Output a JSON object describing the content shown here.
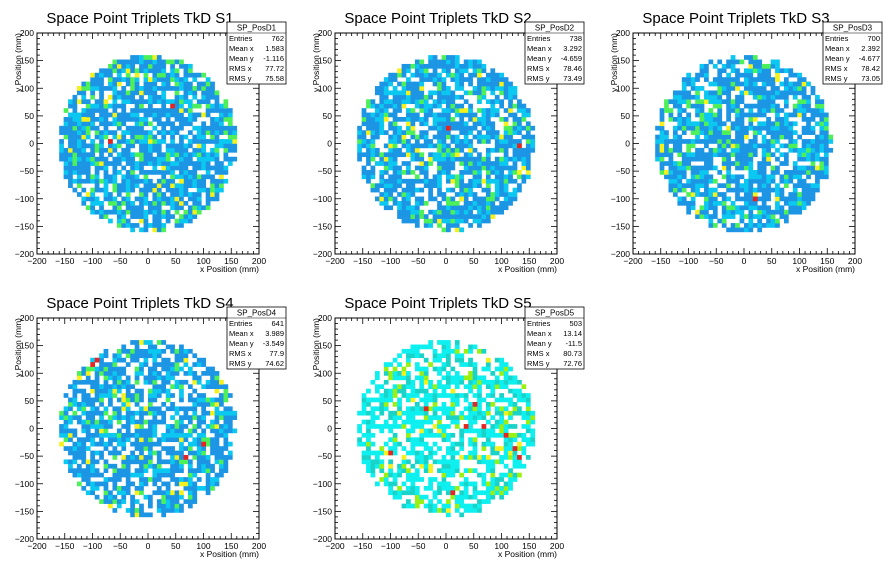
{
  "chart_data": [
    {
      "type": "heatmap",
      "title": "Space Point Triplets TkD S1",
      "xlabel": "x Position (mm)",
      "ylabel": "y Position (mm)",
      "xlim": [
        -200,
        200
      ],
      "ylim": [
        -200,
        200
      ],
      "xticks": [
        "−200",
        "−150",
        "−100",
        "−50",
        "0",
        "50",
        "100",
        "150",
        "200"
      ],
      "yticks": [
        "−200",
        "−150",
        "−100",
        "−50",
        "0",
        "50",
        "100",
        "150",
        "200"
      ],
      "stats": {
        "name": "SP_PosD1",
        "rows": [
          {
            "label": "Entries",
            "value": "762"
          },
          {
            "label": "Mean x",
            "value": "1.583"
          },
          {
            "label": "Mean y",
            "value": "-1.116"
          },
          {
            "label": "RMS x",
            "value": "77.72"
          },
          {
            "label": "RMS y",
            "value": "75.58"
          }
        ]
      },
      "occupied_radius_mm": 160,
      "cell_mm": 8,
      "grid": false,
      "palette": [
        "#1c95e4",
        "#0bc8f0",
        "#4ef05a",
        "#f5f11c",
        "#e52424"
      ],
      "fill_ratio": 0.78,
      "seed": 11,
      "hot_bins": [
        {
          "x": 40,
          "y": 64,
          "level": 5
        },
        {
          "x": -72,
          "y": 0,
          "level": 5
        },
        {
          "x": -120,
          "y": 40,
          "level": 4
        },
        {
          "x": 56,
          "y": -72,
          "level": 4
        }
      ]
    },
    {
      "type": "heatmap",
      "title": "Space Point Triplets TkD S2",
      "xlabel": "x Position (mm)",
      "ylabel": "y Position (mm)",
      "xlim": [
        -200,
        200
      ],
      "ylim": [
        -200,
        200
      ],
      "xticks": [
        "−200",
        "−150",
        "−100",
        "−50",
        "0",
        "50",
        "100",
        "150",
        "200"
      ],
      "yticks": [
        "−200",
        "−150",
        "−100",
        "−50",
        "0",
        "50",
        "100",
        "150",
        "200"
      ],
      "stats": {
        "name": "SP_PosD2",
        "rows": [
          {
            "label": "Entries",
            "value": "738"
          },
          {
            "label": "Mean x",
            "value": "3.292"
          },
          {
            "label": "Mean y",
            "value": "-4.659"
          },
          {
            "label": "RMS x",
            "value": "78.46"
          },
          {
            "label": "RMS y",
            "value": "73.49"
          }
        ]
      },
      "occupied_radius_mm": 160,
      "cell_mm": 8,
      "grid": false,
      "palette": [
        "#1c95e4",
        "#0bc8f0",
        "#4ef05a",
        "#f5f11c",
        "#e52424"
      ],
      "fill_ratio": 0.76,
      "seed": 23,
      "hot_bins": [
        {
          "x": 0,
          "y": 24,
          "level": 5
        },
        {
          "x": 128,
          "y": -8,
          "level": 5
        },
        {
          "x": -112,
          "y": 40,
          "level": 4
        },
        {
          "x": 24,
          "y": -104,
          "level": 4
        }
      ]
    },
    {
      "type": "heatmap",
      "title": "Space Point Triplets TkD S3",
      "xlabel": "x Position (mm)",
      "ylabel": "y Position (mm)",
      "xlim": [
        -200,
        200
      ],
      "ylim": [
        -200,
        200
      ],
      "xticks": [
        "−200",
        "−150",
        "−100",
        "−50",
        "0",
        "50",
        "100",
        "150",
        "200"
      ],
      "yticks": [
        "−200",
        "−150",
        "−100",
        "−50",
        "0",
        "50",
        "100",
        "150",
        "200"
      ],
      "stats": {
        "name": "SP_PosD3",
        "rows": [
          {
            "label": "Entries",
            "value": "700"
          },
          {
            "label": "Mean x",
            "value": "2.392"
          },
          {
            "label": "Mean y",
            "value": "-4.677"
          },
          {
            "label": "RMS x",
            "value": "78.42"
          },
          {
            "label": "RMS y",
            "value": "73.05"
          }
        ]
      },
      "occupied_radius_mm": 160,
      "cell_mm": 8,
      "grid": false,
      "palette": [
        "#1c95e4",
        "#0bc8f0",
        "#4ef05a",
        "#f5f11c",
        "#e52424"
      ],
      "fill_ratio": 0.74,
      "seed": 37,
      "hot_bins": [
        {
          "x": 16,
          "y": -104,
          "level": 5
        },
        {
          "x": -80,
          "y": 40,
          "level": 3
        }
      ]
    },
    {
      "type": "heatmap",
      "title": "Space Point Triplets TkD S4",
      "xlabel": "x Position (mm)",
      "ylabel": "y Position (mm)",
      "xlim": [
        -200,
        200
      ],
      "ylim": [
        -200,
        200
      ],
      "xticks": [
        "−200",
        "−150",
        "−100",
        "−50",
        "0",
        "50",
        "100",
        "150",
        "200"
      ],
      "yticks": [
        "−200",
        "−150",
        "−100",
        "−50",
        "0",
        "50",
        "100",
        "150",
        "200"
      ],
      "stats": {
        "name": "SP_PosD4",
        "rows": [
          {
            "label": "Entries",
            "value": "641"
          },
          {
            "label": "Mean x",
            "value": "3.989"
          },
          {
            "label": "Mean y",
            "value": "-3.549"
          },
          {
            "label": "RMS x",
            "value": "77.9"
          },
          {
            "label": "RMS y",
            "value": "74.62"
          }
        ]
      },
      "occupied_radius_mm": 160,
      "cell_mm": 8,
      "grid": false,
      "palette": [
        "#1c95e4",
        "#0bc8f0",
        "#4ef05a",
        "#f5f11c",
        "#e52424"
      ],
      "fill_ratio": 0.72,
      "seed": 41,
      "hot_bins": [
        {
          "x": -96,
          "y": 120,
          "level": 5
        },
        {
          "x": -104,
          "y": 112,
          "level": 5
        },
        {
          "x": 96,
          "y": -32,
          "level": 5
        },
        {
          "x": 64,
          "y": -56,
          "level": 5
        },
        {
          "x": -24,
          "y": 0,
          "level": 4
        }
      ]
    },
    {
      "type": "heatmap",
      "title": "Space Point Triplets TkD S5",
      "xlabel": "x Position (mm)",
      "ylabel": "y Position (mm)",
      "xlim": [
        -200,
        200
      ],
      "ylim": [
        -200,
        200
      ],
      "xticks": [
        "−200",
        "−150",
        "−100",
        "−50",
        "0",
        "50",
        "100",
        "150",
        "200"
      ],
      "yticks": [
        "−200",
        "−150",
        "−100",
        "−50",
        "0",
        "50",
        "100",
        "150",
        "200"
      ],
      "stats": {
        "name": "SP_PosD5",
        "rows": [
          {
            "label": "Entries",
            "value": "503"
          },
          {
            "label": "Mean x",
            "value": "13.14"
          },
          {
            "label": "Mean y",
            "value": "-11.5"
          },
          {
            "label": "RMS x",
            "value": "80.73"
          },
          {
            "label": "RMS y",
            "value": "72.76"
          }
        ]
      },
      "occupied_radius_mm": 160,
      "cell_mm": 8,
      "grid": false,
      "palette": [
        "#0ef0f0",
        "#1ad3c8",
        "#9af010",
        "#f5f11c",
        "#e52424"
      ],
      "fill_ratio": 0.62,
      "seed": 53,
      "hot_bins": [
        {
          "x": 48,
          "y": 40,
          "level": 5
        },
        {
          "x": -40,
          "y": 32,
          "level": 5
        },
        {
          "x": 64,
          "y": 0,
          "level": 5
        },
        {
          "x": 120,
          "y": -40,
          "level": 5
        },
        {
          "x": 128,
          "y": -56,
          "level": 5
        },
        {
          "x": 104,
          "y": -16,
          "level": 5
        },
        {
          "x": 8,
          "y": -120,
          "level": 5
        },
        {
          "x": -104,
          "y": -48,
          "level": 5
        },
        {
          "x": 32,
          "y": 0,
          "level": 5
        }
      ]
    }
  ]
}
